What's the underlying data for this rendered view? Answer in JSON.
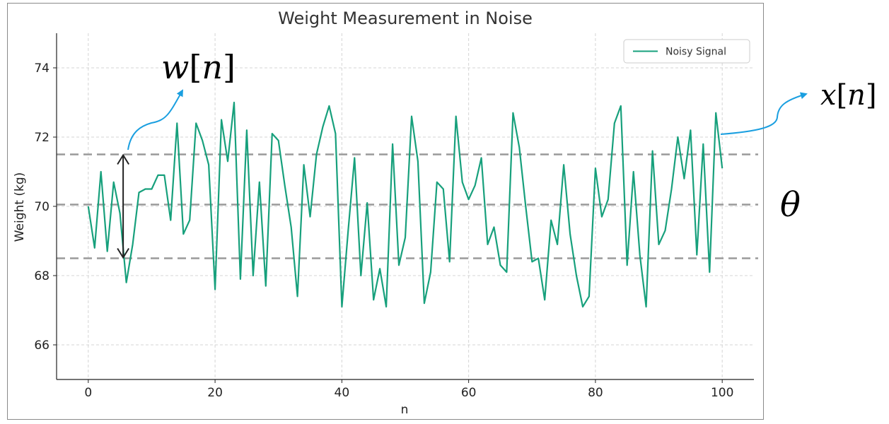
{
  "chart_data": {
    "type": "line",
    "title": "Weight Measurement in Noise",
    "xlabel": "n",
    "ylabel": "Weight (kg)",
    "xlim": [
      -5,
      105
    ],
    "ylim": [
      65,
      75
    ],
    "xticks": [
      0,
      20,
      40,
      60,
      80,
      100
    ],
    "yticks": [
      66,
      68,
      70,
      72,
      74
    ],
    "grid": true,
    "legend": {
      "placement": "top-right",
      "entries": [
        "Noisy Signal"
      ]
    },
    "series": [
      {
        "name": "Noisy Signal",
        "color": "#17a07c",
        "x": [
          0,
          1,
          2,
          3,
          4,
          5,
          6,
          7,
          8,
          9,
          10,
          11,
          12,
          13,
          14,
          15,
          16,
          17,
          18,
          19,
          20,
          21,
          22,
          23,
          24,
          25,
          26,
          27,
          28,
          29,
          30,
          31,
          32,
          33,
          34,
          35,
          36,
          37,
          38,
          39,
          40,
          41,
          42,
          43,
          44,
          45,
          46,
          47,
          48,
          49,
          50,
          51,
          52,
          53,
          54,
          55,
          56,
          57,
          58,
          59,
          60,
          61,
          62,
          63,
          64,
          65,
          66,
          67,
          68,
          69,
          70,
          71,
          72,
          73,
          74,
          75,
          76,
          77,
          78,
          79,
          80,
          81,
          82,
          83,
          84,
          85,
          86,
          87,
          88,
          89,
          90,
          91,
          92,
          93,
          94,
          95,
          96,
          97,
          98,
          99,
          100
        ],
        "values": [
          70.0,
          68.8,
          71.0,
          68.7,
          70.7,
          69.8,
          67.8,
          68.9,
          70.4,
          70.5,
          70.5,
          70.9,
          70.9,
          69.6,
          72.4,
          69.2,
          69.6,
          72.4,
          71.9,
          71.2,
          67.6,
          72.5,
          71.3,
          73.0,
          67.9,
          72.2,
          68.0,
          70.7,
          67.7,
          72.1,
          71.9,
          70.6,
          69.4,
          67.4,
          71.2,
          69.7,
          71.5,
          72.3,
          72.9,
          72.1,
          67.1,
          69.3,
          71.4,
          68.0,
          70.1,
          67.3,
          68.2,
          67.1,
          71.8,
          68.3,
          69.1,
          72.6,
          71.3,
          67.2,
          68.1,
          70.7,
          70.5,
          68.4,
          72.6,
          70.7,
          70.2,
          70.6,
          71.4,
          68.9,
          69.4,
          68.3,
          68.1,
          72.7,
          71.7,
          70.0,
          68.4,
          68.5,
          67.3,
          69.6,
          68.9,
          71.2,
          69.2,
          68.0,
          67.1,
          67.4,
          71.1,
          69.7,
          70.2,
          72.4,
          72.9,
          68.3,
          71.0,
          68.6,
          67.1,
          71.6,
          68.9,
          69.3,
          70.5,
          72.0,
          70.8,
          72.2,
          68.6,
          71.8,
          68.1,
          72.7,
          71.1
        ]
      }
    ],
    "reference_lines": [
      {
        "y": 71.5,
        "style": "dashed",
        "color": "#9a9a9a"
      },
      {
        "y": 70.05,
        "style": "dashed",
        "color": "#9a9a9a"
      },
      {
        "y": 68.5,
        "style": "dashed",
        "color": "#9a9a9a"
      }
    ],
    "annotations": [
      {
        "label": "w[n]",
        "math": "w",
        "bracket": "n",
        "target": "noise band",
        "arrow_color": "#1a9fe0",
        "at_x": 5.5
      },
      {
        "label": "x[n]",
        "math": "x",
        "bracket": "n",
        "target": "noisy signal",
        "arrow_color": "#1a9fe0"
      },
      {
        "label": "θ",
        "math": "θ",
        "target": "true weight level"
      }
    ]
  }
}
